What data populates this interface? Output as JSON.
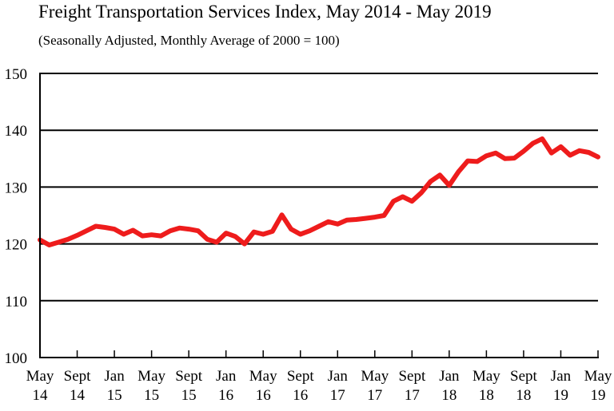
{
  "chart_data": {
    "type": "line",
    "title": "Freight Transportation Services Index, May 2014 - May 2019",
    "subtitle": "(Seasonally Adjusted, Monthly Average of 2000 = 100)",
    "xlabel": "",
    "ylabel": "",
    "ylim": [
      100,
      150
    ],
    "yticks": [
      100,
      110,
      120,
      130,
      140,
      150
    ],
    "grid": true,
    "legend": "none",
    "line_color": "#ee1c1c",
    "xticks": [
      {
        "month": 0,
        "label1": "May",
        "label2": "14"
      },
      {
        "month": 4,
        "label1": "Sept",
        "label2": "14"
      },
      {
        "month": 8,
        "label1": "Jan",
        "label2": "15"
      },
      {
        "month": 12,
        "label1": "May",
        "label2": "15"
      },
      {
        "month": 16,
        "label1": "Sept",
        "label2": "15"
      },
      {
        "month": 20,
        "label1": "Jan",
        "label2": "16"
      },
      {
        "month": 24,
        "label1": "May",
        "label2": "16"
      },
      {
        "month": 28,
        "label1": "Sept",
        "label2": "16"
      },
      {
        "month": 32,
        "label1": "Jan",
        "label2": "17"
      },
      {
        "month": 36,
        "label1": "May",
        "label2": "17"
      },
      {
        "month": 40,
        "label1": "Sept",
        "label2": "17"
      },
      {
        "month": 44,
        "label1": "Jan",
        "label2": "18"
      },
      {
        "month": 48,
        "label1": "May",
        "label2": "18"
      },
      {
        "month": 52,
        "label1": "Sept",
        "label2": "18"
      },
      {
        "month": 56,
        "label1": "Jan",
        "label2": "19"
      },
      {
        "month": 60,
        "label1": "May",
        "label2": "19"
      }
    ],
    "series": [
      {
        "values": [
          120.7,
          119.8,
          120.3,
          120.8,
          121.5,
          122.3,
          123.1,
          122.9,
          122.6,
          121.7,
          122.4,
          121.4,
          121.6,
          121.4,
          122.3,
          122.8,
          122.6,
          122.3,
          120.8,
          120.3,
          121.9,
          121.3,
          120.0,
          122.1,
          121.7,
          122.2,
          125.1,
          122.6,
          121.7,
          122.3,
          123.1,
          123.9,
          123.5,
          124.2,
          124.3,
          124.5,
          124.7,
          125.0,
          127.5,
          128.3,
          127.5,
          129.0,
          131.0,
          132.1,
          130.3,
          132.7,
          134.6,
          134.5,
          135.5,
          136.0,
          135.0,
          135.1,
          136.3,
          137.7,
          138.5,
          136.0,
          137.1,
          135.6,
          136.4,
          136.1,
          135.3
        ]
      }
    ]
  }
}
